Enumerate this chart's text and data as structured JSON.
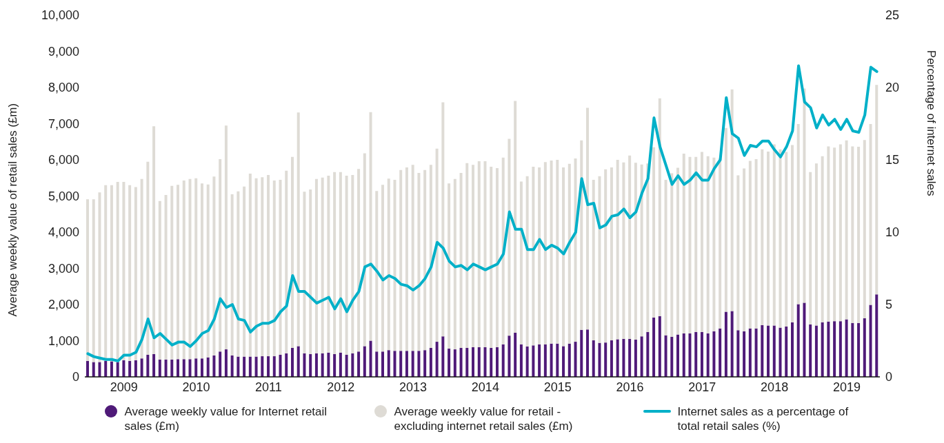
{
  "chart_data": {
    "type": "bar",
    "stacked": true,
    "ylabel": "Average weekly value of retail sales (£m)",
    "y2label": "Percentage of internet sales",
    "categories": [
      null,
      null,
      null,
      null,
      null,
      null,
      "2009",
      null,
      null,
      null,
      null,
      null,
      null,
      null,
      null,
      null,
      null,
      null,
      "2010",
      null,
      null,
      null,
      null,
      null,
      null,
      null,
      null,
      null,
      null,
      null,
      "2011",
      null,
      null,
      null,
      null,
      null,
      null,
      null,
      null,
      null,
      null,
      null,
      "2012",
      null,
      null,
      null,
      null,
      null,
      null,
      null,
      null,
      null,
      null,
      null,
      "2013",
      null,
      null,
      null,
      null,
      null,
      null,
      null,
      null,
      null,
      null,
      null,
      "2014",
      null,
      null,
      null,
      null,
      null,
      null,
      null,
      null,
      null,
      null,
      null,
      "2015",
      null,
      null,
      null,
      null,
      null,
      null,
      null,
      null,
      null,
      null,
      null,
      "2016",
      null,
      null,
      null,
      null,
      null,
      null,
      null,
      null,
      null,
      null,
      null,
      "2017",
      null,
      null,
      null,
      null,
      null,
      null,
      null,
      null,
      null,
      null,
      null,
      "2018",
      null,
      null,
      null,
      null,
      null,
      null,
      null,
      null,
      null,
      null,
      null,
      "2019",
      null,
      null,
      null,
      null,
      null
    ],
    "series": [
      {
        "name": "Average weekly value for Internet retail sales (£m)",
        "color": "#4f1a78",
        "values": [
          440,
          410,
          410,
          440,
          430,
          410,
          460,
          440,
          460,
          510,
          610,
          630,
          480,
          480,
          480,
          490,
          490,
          490,
          510,
          510,
          540,
          590,
          700,
          760,
          590,
          560,
          560,
          560,
          560,
          570,
          570,
          570,
          610,
          650,
          800,
          850,
          650,
          630,
          650,
          650,
          670,
          630,
          670,
          610,
          650,
          700,
          850,
          1000,
          700,
          700,
          740,
          720,
          720,
          720,
          720,
          720,
          740,
          800,
          970,
          1120,
          780,
          760,
          800,
          800,
          820,
          820,
          820,
          800,
          820,
          900,
          1140,
          1220,
          900,
          840,
          870,
          900,
          900,
          920,
          920,
          850,
          920,
          970,
          1300,
          1310,
          1010,
          940,
          950,
          1010,
          1040,
          1050,
          1050,
          1030,
          1120,
          1240,
          1640,
          1680,
          1150,
          1110,
          1170,
          1200,
          1200,
          1240,
          1240,
          1200,
          1260,
          1340,
          1800,
          1820,
          1290,
          1260,
          1340,
          1340,
          1430,
          1420,
          1420,
          1360,
          1390,
          1510,
          2010,
          2050,
          1450,
          1420,
          1510,
          1530,
          1540,
          1540,
          1590,
          1490,
          1490,
          1620,
          1990,
          2280
        ]
      },
      {
        "name": "Average weekly value for retail - excluding internet retail sales (£m)",
        "color": "#dedbd5",
        "values": [
          4470,
          4500,
          4690,
          4860,
          4870,
          4980,
          4930,
          4860,
          4790,
          4960,
          5340,
          6300,
          4380,
          4550,
          4800,
          4820,
          4940,
          4980,
          4980,
          4840,
          4780,
          4950,
          5320,
          6190,
          4460,
          4570,
          4700,
          5060,
          4930,
          4950,
          5010,
          4860,
          4840,
          5050,
          5280,
          6460,
          4470,
          4550,
          4820,
          4860,
          4890,
          5030,
          4990,
          4950,
          4930,
          5050,
          5330,
          6320,
          4440,
          4610,
          4740,
          4730,
          5000,
          5070,
          5140,
          4920,
          4980,
          5060,
          5340,
          6470,
          4570,
          4710,
          4840,
          5110,
          5040,
          5140,
          5140,
          5010,
          4950,
          5160,
          5440,
          6410,
          4500,
          4710,
          4940,
          4890,
          5040,
          5060,
          5080,
          4940,
          4970,
          5070,
          5240,
          6130,
          4440,
          4610,
          4790,
          4780,
          4960,
          4880,
          5070,
          4890,
          4750,
          4660,
          4710,
          6020,
          4300,
          4520,
          4610,
          4970,
          4880,
          4840,
          4980,
          4900,
          4800,
          4710,
          5080,
          6130,
          4280,
          4500,
          4630,
          4680,
          4860,
          4810,
          5010,
          4930,
          4830,
          4900,
          4980,
          5920,
          4210,
          4480,
          4590,
          4840,
          4800,
          4890,
          4950,
          4880,
          4870,
          4930,
          5000,
          5790
        ]
      },
      {
        "name": "Internet sales as a percentage of total retail sales (%)",
        "type": "line",
        "axis": "y2",
        "color": "#00b0c8",
        "values": [
          1.6,
          1.4,
          1.3,
          1.2,
          1.2,
          1.1,
          1.5,
          1.5,
          1.7,
          2.6,
          4.0,
          2.7,
          3.0,
          2.6,
          2.2,
          2.4,
          2.4,
          2.1,
          2.5,
          3.0,
          3.2,
          4.0,
          5.4,
          4.8,
          5.0,
          4.0,
          3.9,
          3.1,
          3.5,
          3.7,
          3.7,
          3.9,
          4.5,
          4.9,
          7.0,
          5.9,
          5.9,
          5.5,
          5.1,
          5.3,
          5.5,
          4.7,
          5.4,
          4.5,
          5.3,
          5.9,
          7.6,
          7.8,
          7.3,
          6.7,
          7.0,
          6.8,
          6.4,
          6.3,
          6.0,
          6.3,
          6.8,
          7.6,
          9.3,
          8.9,
          8.0,
          7.6,
          7.7,
          7.4,
          7.8,
          7.6,
          7.4,
          7.6,
          7.8,
          8.5,
          11.4,
          10.2,
          10.2,
          8.8,
          8.8,
          9.5,
          8.8,
          9.1,
          8.9,
          8.5,
          9.3,
          10.0,
          13.7,
          11.9,
          12.0,
          10.3,
          10.5,
          11.1,
          11.2,
          11.6,
          11.0,
          11.4,
          12.7,
          13.7,
          17.9,
          15.9,
          14.6,
          13.3,
          13.9,
          13.3,
          13.6,
          14.1,
          13.6,
          13.6,
          14.4,
          15.0,
          19.3,
          16.8,
          16.5,
          15.3,
          16.0,
          15.9,
          16.3,
          16.3,
          15.7,
          15.2,
          15.9,
          17.0,
          21.5,
          19.0,
          18.6,
          17.2,
          18.1,
          17.4,
          17.8,
          17.1,
          17.8,
          17.0,
          16.9,
          18.1,
          21.4,
          21.1
        ]
      }
    ],
    "ylim": [
      0,
      10000
    ],
    "yticks": [
      0,
      {
        "value": 1000,
        "label": "1,000"
      },
      {
        "value": 2000,
        "label": "2,000"
      },
      {
        "value": 3000,
        "label": "3,000"
      },
      {
        "value": 4000,
        "label": "4,000"
      },
      {
        "value": 5000,
        "label": "5,000"
      },
      {
        "value": 6000,
        "label": "6,000"
      },
      {
        "value": 7000,
        "label": "7,000"
      },
      {
        "value": 8000,
        "label": "8,000"
      },
      {
        "value": 9000,
        "label": "9,000"
      },
      {
        "value": 10000,
        "label": "10,000"
      }
    ],
    "y2lim": [
      0,
      25
    ],
    "y2ticks": [
      0,
      5,
      10,
      15,
      20,
      25
    ],
    "grid": false,
    "legend": "bottom",
    "marker": "none",
    "line_style": "solid"
  }
}
